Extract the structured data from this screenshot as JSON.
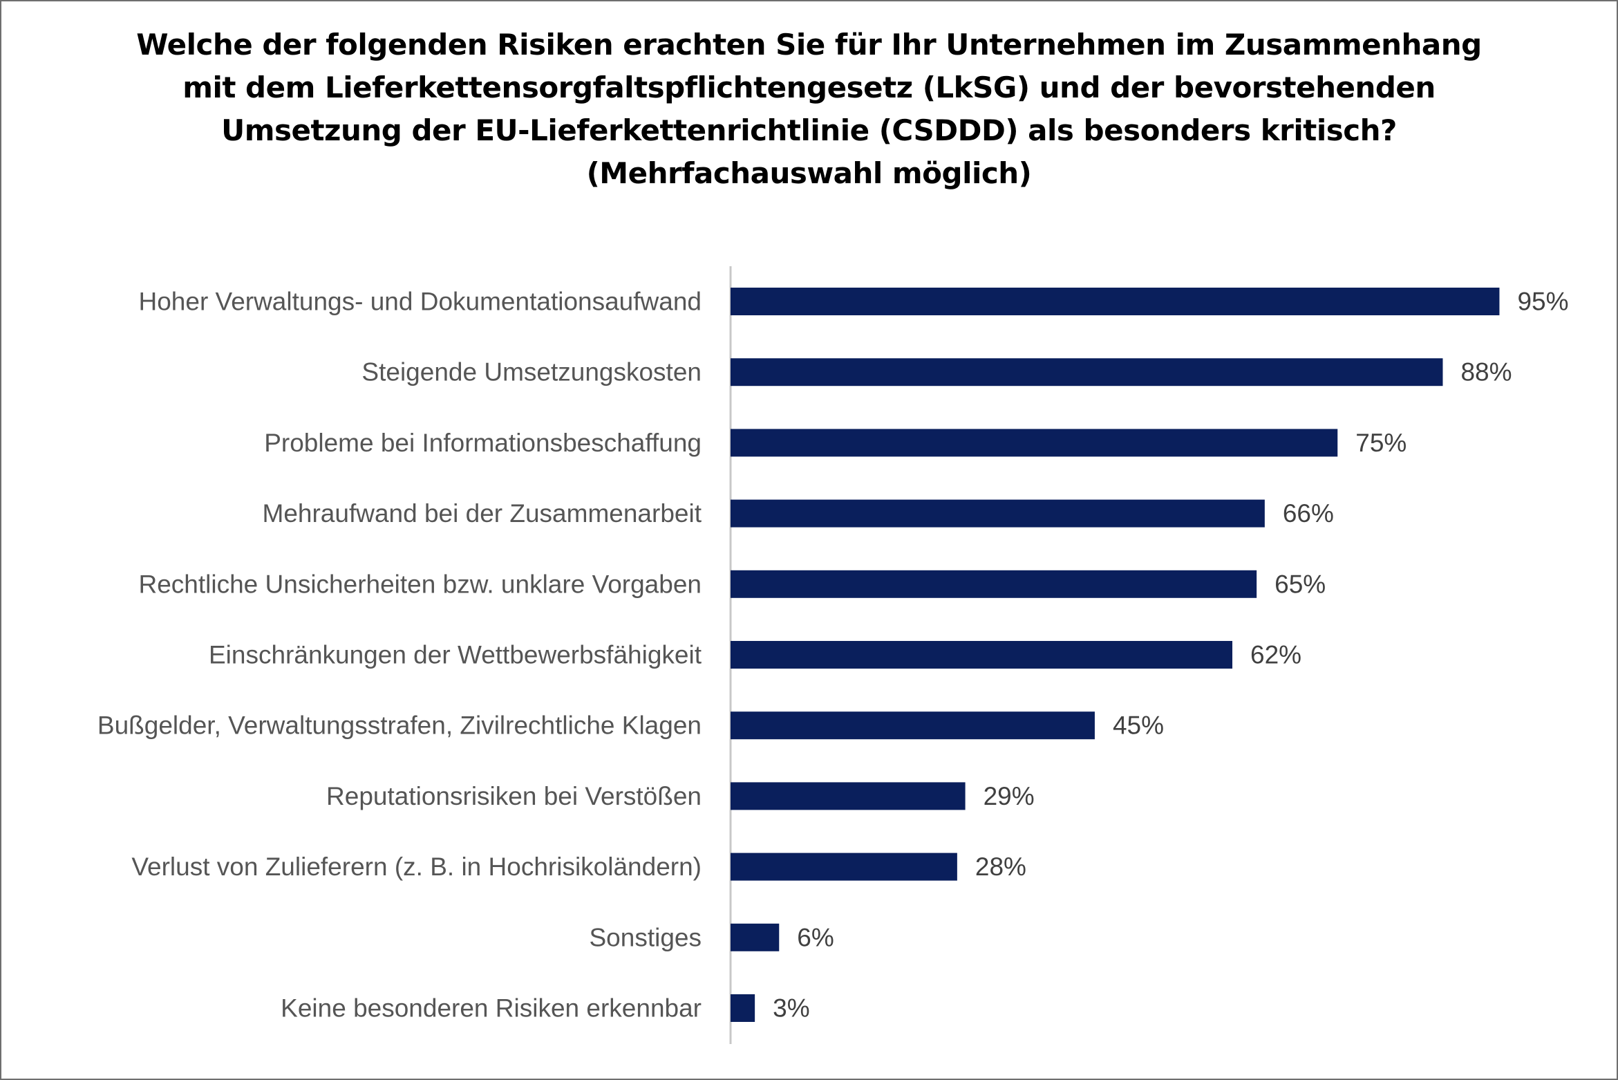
{
  "chart_data": {
    "type": "bar",
    "orientation": "horizontal",
    "title_lines": [
      "Welche der folgenden Risiken erachten Sie für Ihr Unternehmen im Zusammenhang",
      "mit dem Lieferkettensorgfaltspflichtengesetz (LkSG) und der bevorstehenden",
      "Umsetzung der EU-Lieferkettenrichtlinie (CSDDD) als besonders kritisch?",
      "(Mehrfachauswahl möglich)"
    ],
    "categories": [
      "Hoher Verwaltungs- und Dokumentationsaufwand",
      "Steigende Umsetzungskosten",
      "Probleme bei Informationsbeschaffung",
      "Mehraufwand bei der Zusammenarbeit",
      "Rechtliche Unsicherheiten bzw. unklare Vorgaben",
      "Einschränkungen der Wettbewerbsfähigkeit",
      "Bußgelder, Verwaltungsstrafen, Zivilrechtliche Klagen",
      "Reputationsrisiken bei Verstößen",
      "Verlust von Zulieferern (z. B. in Hochrisikoländern)",
      "Sonstiges",
      "Keine besonderen Risiken erkennbar"
    ],
    "values": [
      95,
      88,
      75,
      66,
      65,
      62,
      45,
      29,
      28,
      6,
      3
    ],
    "value_labels": [
      "95%",
      "88%",
      "75%",
      "66%",
      "65%",
      "62%",
      "45%",
      "29%",
      "28%",
      "6%",
      "3%"
    ],
    "unit": "%",
    "xlim": [
      0,
      100
    ],
    "grid": false,
    "legend": "none",
    "bar_color": "#0a1f5c",
    "axis_color": "#c8c8c8"
  }
}
